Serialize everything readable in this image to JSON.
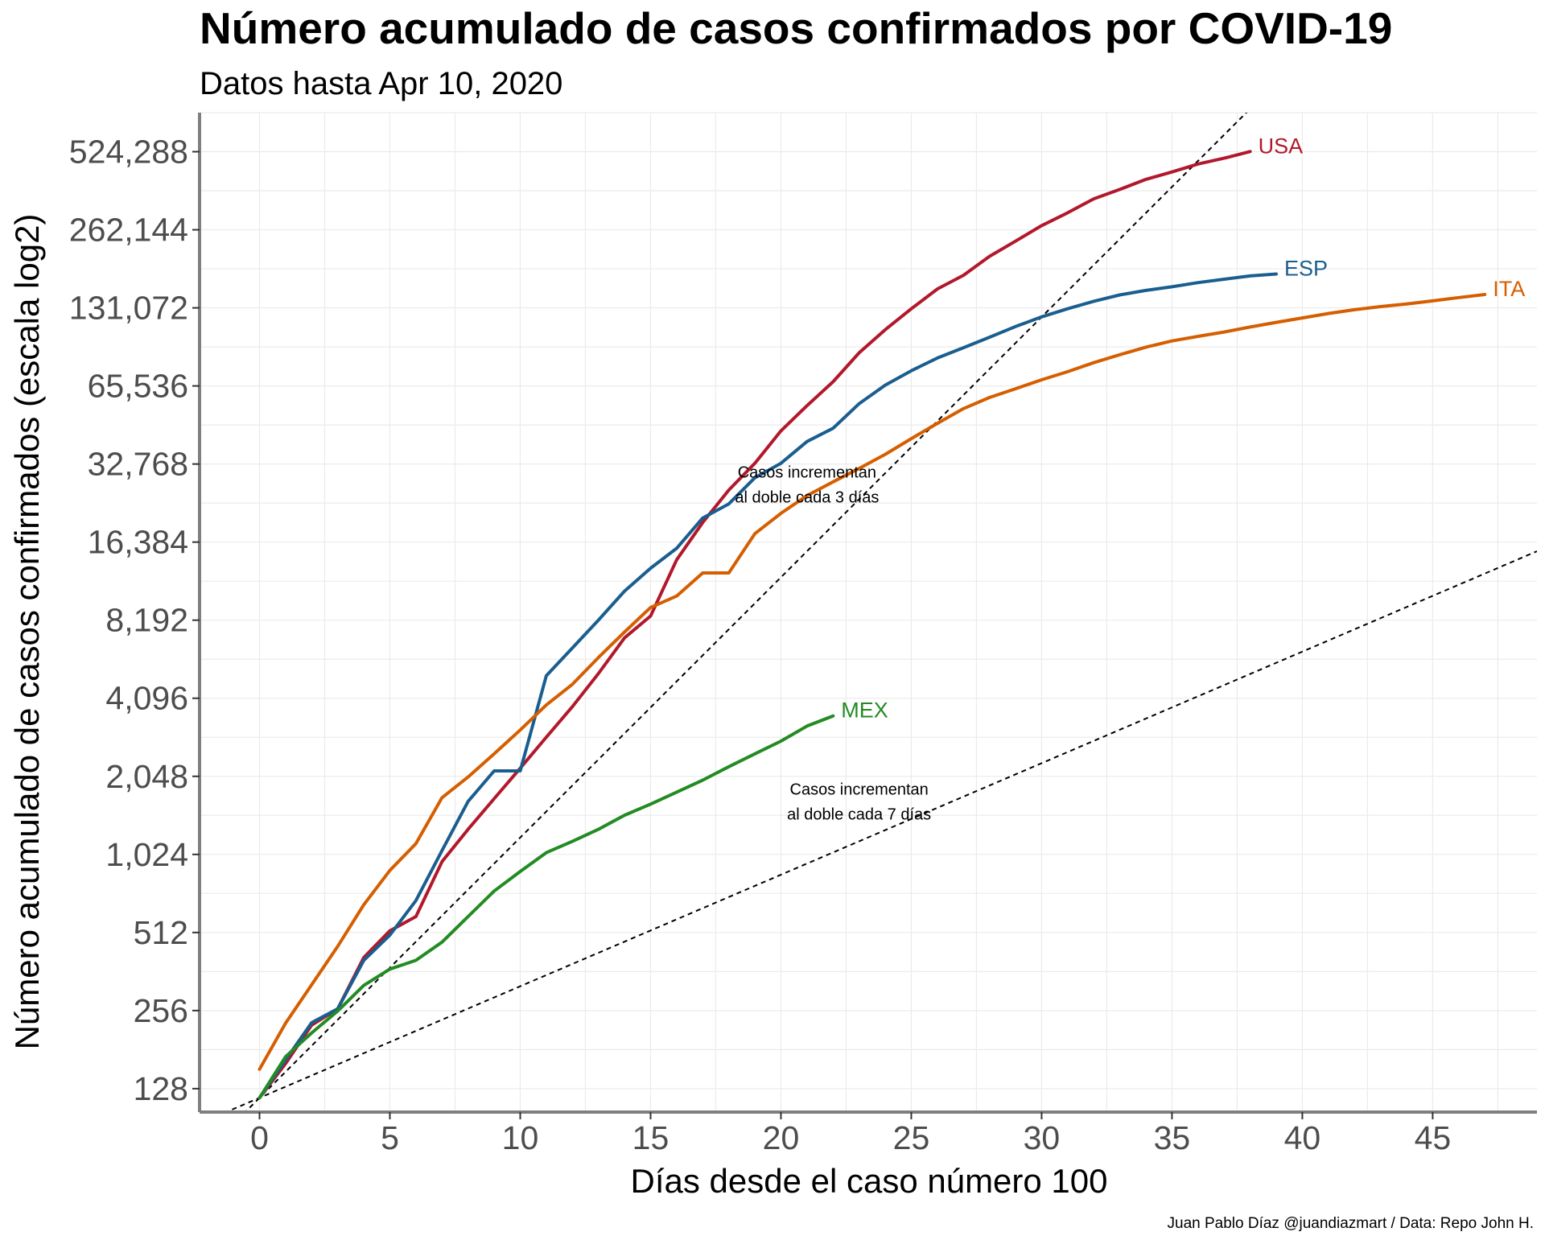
{
  "chart_data": {
    "type": "line",
    "title": "Número acumulado de casos confirmados por COVID-19",
    "subtitle": "Datos hasta Apr 10, 2020",
    "xlabel": "Días desde el caso número 100",
    "ylabel": "Número acumulado de casos confirmados (escala log2)",
    "caption": "Juan Pablo Díaz @juandiazmart / Data: Repo John H.",
    "y_scale": "log2",
    "xlim": [
      -2.3,
      49
    ],
    "ylim_log2": [
      6.7,
      19.5
    ],
    "x_ticks": [
      0,
      5,
      10,
      15,
      20,
      25,
      30,
      35,
      40,
      45
    ],
    "x_tick_labels": [
      "0",
      "5",
      "10",
      "15",
      "20",
      "25",
      "30",
      "35",
      "40",
      "45"
    ],
    "y_ticks": [
      128,
      256,
      512,
      1024,
      2048,
      4096,
      8192,
      16384,
      32768,
      65536,
      131072,
      262144,
      524288
    ],
    "y_tick_labels": [
      "128",
      "256",
      "512",
      "1,024",
      "2,048",
      "4,096",
      "8,192",
      "16,384",
      "32,768",
      "65,536",
      "131,072",
      "262,144",
      "524,288"
    ],
    "grid": true,
    "legend": "none (direct labels at line ends)",
    "series": [
      {
        "name": "USA",
        "color": "#b2182b",
        "x": [
          0,
          1,
          2,
          3,
          4,
          5,
          6,
          7,
          8,
          9,
          10,
          11,
          12,
          13,
          14,
          15,
          16,
          17,
          18,
          19,
          20,
          21,
          22,
          23,
          24,
          25,
          26,
          27,
          28,
          29,
          30,
          31,
          32,
          33,
          34,
          35,
          36,
          37,
          38
        ],
        "values": [
          118,
          160,
          225,
          260,
          410,
          520,
          590,
          960,
          1280,
          1680,
          2200,
          2900,
          3800,
          5100,
          7000,
          8500,
          14000,
          19500,
          26000,
          33000,
          44000,
          55000,
          68000,
          88000,
          108000,
          130000,
          155000,
          175000,
          207000,
          237000,
          272000,
          305000,
          345000,
          375000,
          410000,
          438000,
          470000,
          495000,
          525000
        ]
      },
      {
        "name": "ESP",
        "color": "#1a5e8f",
        "x": [
          0,
          1,
          2,
          3,
          4,
          5,
          6,
          7,
          8,
          9,
          10,
          11,
          12,
          13,
          14,
          15,
          16,
          17,
          18,
          19,
          20,
          21,
          22,
          23,
          24,
          25,
          26,
          27,
          28,
          29,
          30,
          31,
          32,
          33,
          34,
          35,
          36,
          37,
          38,
          39
        ],
        "values": [
          118,
          165,
          230,
          260,
          400,
          500,
          680,
          1060,
          1640,
          2150,
          2150,
          5000,
          6400,
          8200,
          10600,
          13000,
          15500,
          20300,
          23000,
          29000,
          33000,
          40000,
          45000,
          56000,
          66000,
          75000,
          84000,
          92000,
          101000,
          111000,
          121000,
          130000,
          139000,
          147000,
          153000,
          158000,
          164000,
          169000,
          174000,
          177000
        ]
      },
      {
        "name": "ITA",
        "color": "#d55e00",
        "x": [
          0,
          1,
          2,
          3,
          4,
          5,
          6,
          7,
          8,
          9,
          10,
          11,
          12,
          13,
          14,
          15,
          16,
          17,
          18,
          19,
          20,
          21,
          22,
          23,
          24,
          25,
          26,
          27,
          28,
          29,
          30,
          31,
          32,
          33,
          34,
          35,
          36,
          37,
          38,
          39,
          40,
          41,
          42,
          43,
          44,
          45,
          46,
          47
        ],
        "values": [
          152,
          229,
          322,
          453,
          655,
          888,
          1128,
          1694,
          2036,
          2502,
          3089,
          3858,
          4636,
          5883,
          7375,
          9172,
          10149,
          12462,
          12462,
          17660,
          21157,
          24747,
          27980,
          31506,
          35713,
          41035,
          47021,
          53578,
          59138,
          63927,
          69176,
          74386,
          80589,
          86498,
          92472,
          97689,
          101739,
          105792,
          110574,
          115242,
          119827,
          124632,
          128948,
          132547,
          135586,
          139422,
          143626,
          147577
        ]
      },
      {
        "name": "MEX",
        "color": "#238b23",
        "x": [
          0,
          1,
          2,
          3,
          4,
          5,
          6,
          7,
          8,
          9,
          10,
          11,
          12,
          13,
          14,
          15,
          16,
          17,
          18,
          19,
          20,
          21,
          22
        ],
        "values": [
          118,
          170,
          210,
          255,
          320,
          370,
          400,
          470,
          590,
          740,
          880,
          1040,
          1150,
          1280,
          1450,
          1600,
          1780,
          1980,
          2230,
          2500,
          2800,
          3200,
          3500
        ]
      }
    ],
    "reference_lines": [
      {
        "name": "Casos incrementan al doble cada 3 días",
        "doubling_days": 3,
        "origin": [
          0,
          118
        ],
        "label_lines": [
          "Casos incrementan",
          "al doble cada 3 días"
        ],
        "label_at": [
          21,
          29000
        ]
      },
      {
        "name": "Casos incrementan al doble cada 7 días",
        "doubling_days": 7,
        "origin": [
          0,
          118
        ],
        "label_lines": [
          "Casos incrementan",
          "al doble cada 7 días"
        ],
        "label_at": [
          23,
          1740
        ]
      }
    ]
  }
}
